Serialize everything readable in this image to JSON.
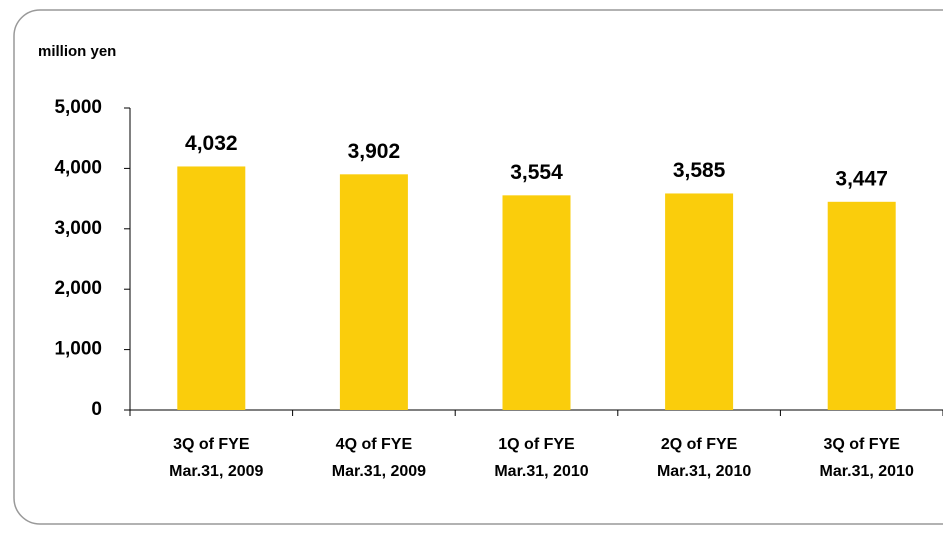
{
  "chart_data": {
    "type": "bar",
    "y_axis_label": "million yen",
    "categories": [
      [
        "3Q of FYE",
        "Mar.31, 2009"
      ],
      [
        "4Q of FYE",
        "Mar.31, 2009"
      ],
      [
        "1Q of FYE",
        "Mar.31, 2010"
      ],
      [
        "2Q of FYE",
        "Mar.31, 2010"
      ],
      [
        "3Q of FYE",
        "Mar.31, 2010"
      ]
    ],
    "values": [
      4032,
      3902,
      3554,
      3585,
      3447
    ],
    "value_labels": [
      "4,032",
      "3,902",
      "3,554",
      "3,585",
      "3,447"
    ],
    "color": "#FACD0C",
    "ylim": [
      0,
      5000
    ],
    "yticks": [
      0,
      {
        "value": 1000,
        "label": "1,000"
      },
      {
        "value": 2000,
        "label": "2,000"
      },
      {
        "value": 3000,
        "label": "3,000"
      },
      {
        "value": 4000,
        "label": "4,000"
      },
      {
        "value": 5000,
        "label": "5,000"
      }
    ],
    "grid": false
  }
}
